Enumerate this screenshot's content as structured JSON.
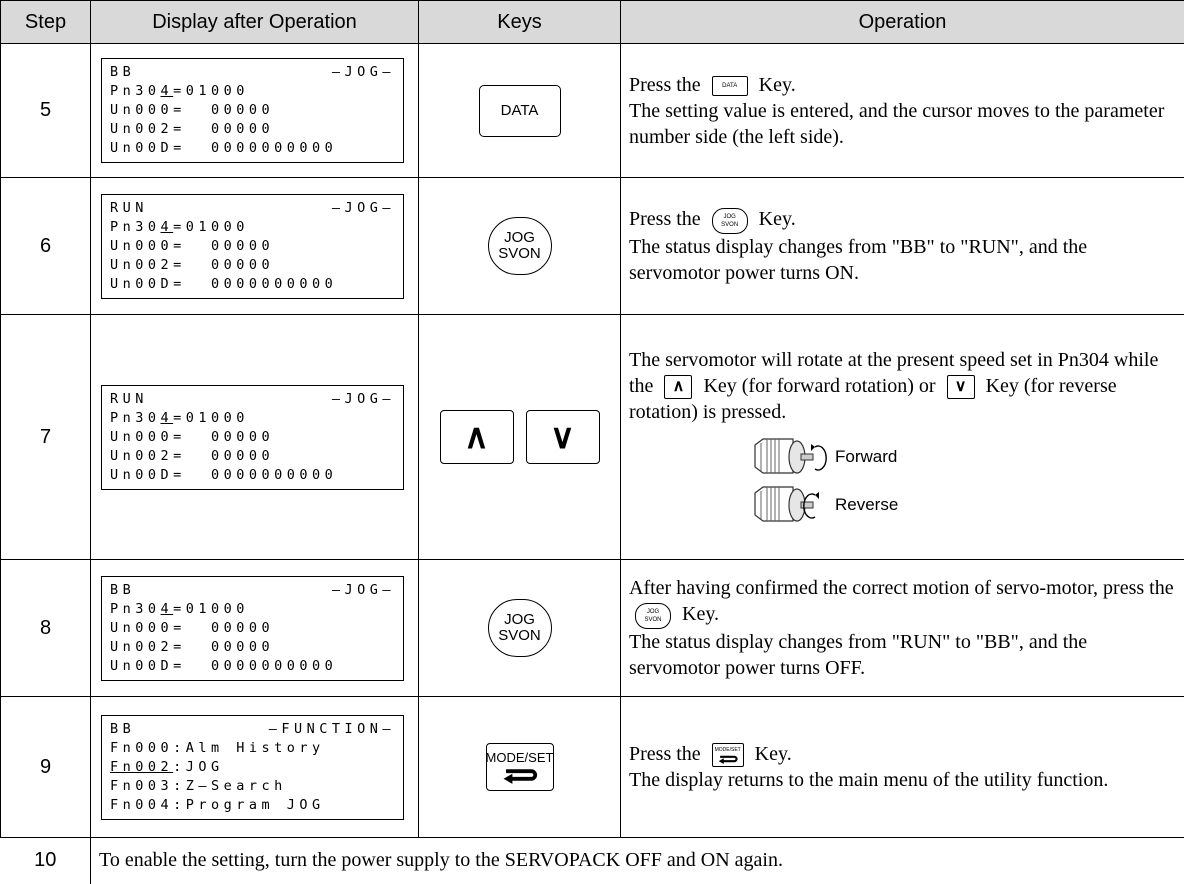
{
  "header": [
    "Step",
    "Display after Operation",
    "Keys",
    "Operation"
  ],
  "rows": [
    {
      "step": "5",
      "display": {
        "status": "BB",
        "mode": "–JOG–",
        "lines": [
          {
            "segments": [
              "Pn30",
              "4",
              "=01000"
            ],
            "underline": 1
          },
          {
            "segments": [
              "Un000=  00000"
            ]
          },
          {
            "segments": [
              "Un002=  00000"
            ]
          },
          {
            "segments": [
              "Un00D=  0000000000"
            ]
          }
        ]
      },
      "keys": [
        {
          "label": [
            "DATA"
          ],
          "shape": "rect"
        }
      ],
      "operation": [
        [
          "Press the",
          {
            "key": "DATA",
            "shape": "rect"
          },
          "Key."
        ],
        [
          "The setting value is entered, and the cursor moves to the parameter number side (the left side)."
        ]
      ]
    },
    {
      "step": "6",
      "display": {
        "status": "RUN",
        "mode": "–JOG–",
        "lines": [
          {
            "segments": [
              "Pn30",
              "4",
              "=01000"
            ],
            "underline": 1
          },
          {
            "segments": [
              "Un000=  00000"
            ]
          },
          {
            "segments": [
              "Un002=  00000"
            ]
          },
          {
            "segments": [
              "Un00D=  0000000000"
            ]
          }
        ]
      },
      "keys": [
        {
          "label": [
            "JOG",
            "SVON"
          ],
          "shape": "round"
        }
      ],
      "operation": [
        [
          "Press the",
          {
            "key": "JOG SVON",
            "shape": "round"
          },
          "Key."
        ],
        [
          "The status display changes from \"BB\" to \"RUN\", and the servomotor power turns ON."
        ]
      ]
    },
    {
      "step": "7",
      "display": {
        "status": "RUN",
        "mode": "–JOG–",
        "lines": [
          {
            "segments": [
              "Pn30",
              "4",
              "=01000"
            ],
            "underline": 1
          },
          {
            "segments": [
              "Un000=  00000"
            ]
          },
          {
            "segments": [
              "Un002=  00000"
            ]
          },
          {
            "segments": [
              "Un00D=  0000000000"
            ]
          }
        ]
      },
      "keys": [
        {
          "label": [
            "∧"
          ],
          "shape": "square"
        },
        {
          "label": [
            "∨"
          ],
          "shape": "square"
        }
      ],
      "operation": [
        [
          "The servomotor will rotate at the present speed set in Pn304 while the",
          {
            "key": "∧",
            "shape": "square"
          },
          "Key (for forward rotation) or",
          {
            "key": "∨",
            "shape": "square"
          },
          "Key (for reverse rotation) is pressed."
        ]
      ],
      "figure": [
        "Forward",
        "Reverse"
      ]
    },
    {
      "step": "8",
      "display": {
        "status": "BB",
        "mode": "–JOG–",
        "lines": [
          {
            "segments": [
              "Pn30",
              "4",
              "=01000"
            ],
            "underline": 1
          },
          {
            "segments": [
              "Un000=  00000"
            ]
          },
          {
            "segments": [
              "Un002=  00000"
            ]
          },
          {
            "segments": [
              "Un00D=  0000000000"
            ]
          }
        ]
      },
      "keys": [
        {
          "label": [
            "JOG",
            "SVON"
          ],
          "shape": "round"
        }
      ],
      "operation": [
        [
          "After having confirmed the correct motion of servo-motor, press the",
          {
            "key": "JOG SVON",
            "shape": "round"
          },
          "Key."
        ],
        [
          "The status display changes from \"RUN\" to \"BB\", and the servomotor power turns OFF."
        ]
      ]
    },
    {
      "step": "9",
      "display": {
        "status": "BB",
        "mode": "–FUNCTION–",
        "lines": [
          {
            "segments": [
              "Fn000:Alm History"
            ]
          },
          {
            "segments": [
              "Fn002",
              ":JOG"
            ],
            "underline": 0
          },
          {
            "segments": [
              "Fn003:Z–Search"
            ]
          },
          {
            "segments": [
              "Fn004:Program JOG"
            ]
          }
        ]
      },
      "keys": [
        {
          "label": [
            "MODE/SET"
          ],
          "shape": "mode"
        }
      ],
      "operation": [
        [
          "Press the",
          {
            "key": "MODE/SET",
            "shape": "mode"
          },
          "Key."
        ],
        [
          "The display returns to the main menu of the utility function."
        ]
      ]
    }
  ],
  "footer": {
    "step": "10",
    "text": "To enable the setting, turn the power supply to the SERVOPACK OFF and ON again."
  }
}
